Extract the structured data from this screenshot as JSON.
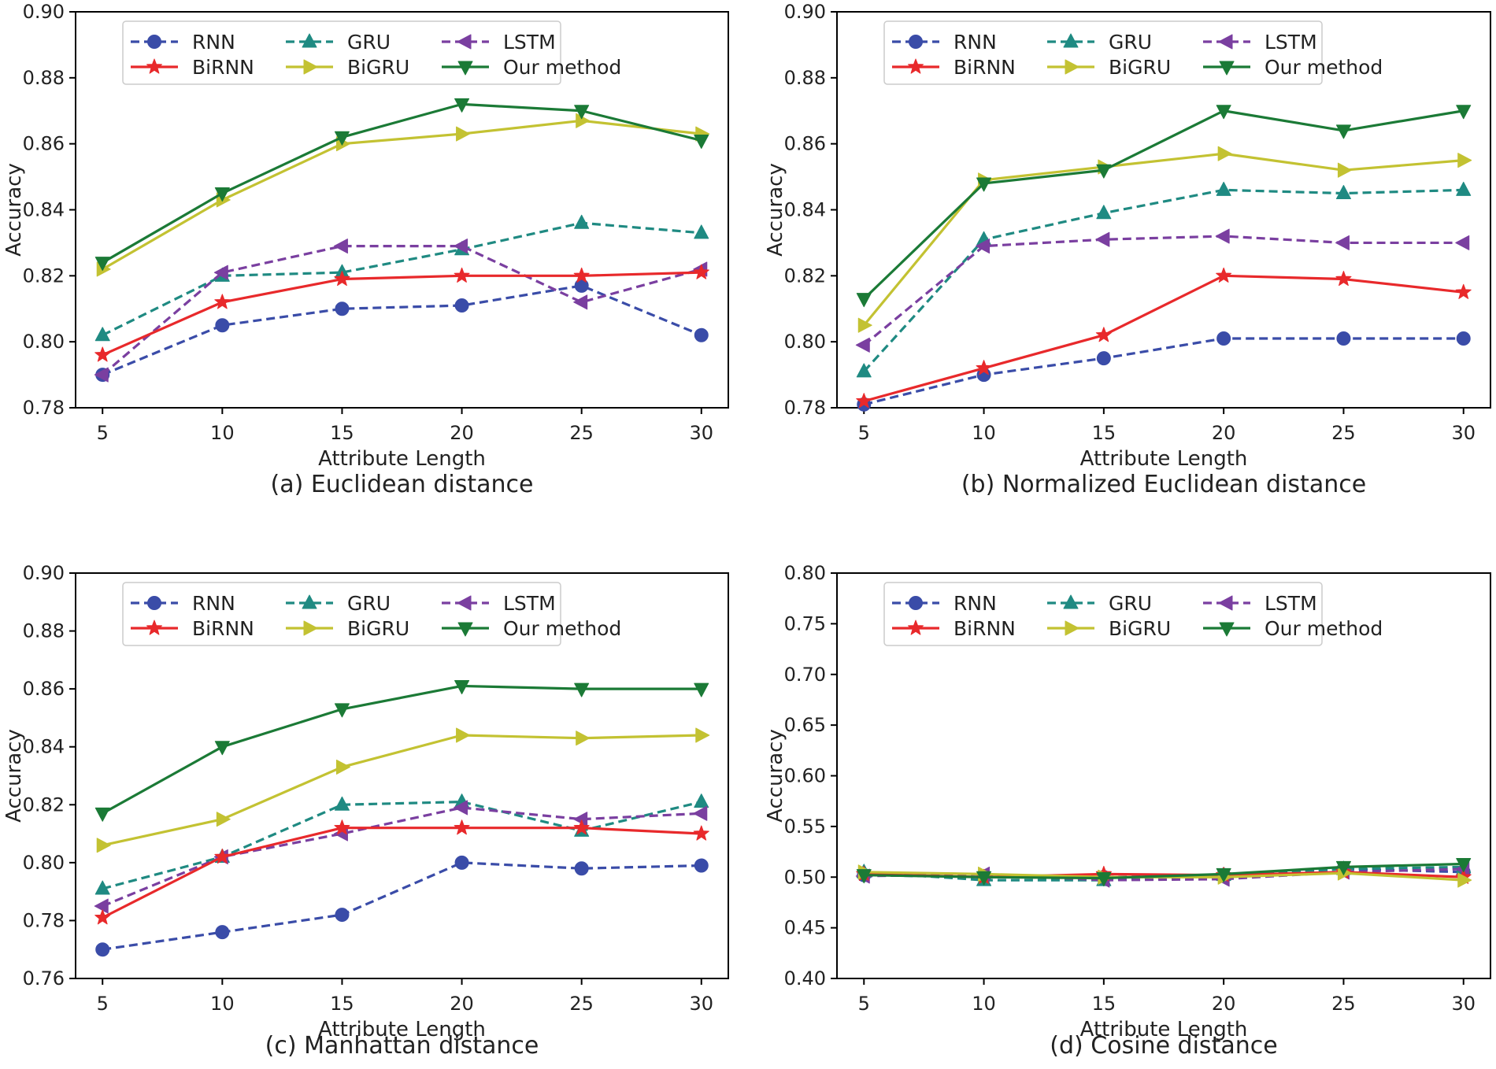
{
  "chart_data": [
    {
      "type": "line",
      "caption": "(a) Euclidean distance",
      "xlabel": "Attribute Length",
      "ylabel": "Accuracy",
      "x": [
        5,
        10,
        15,
        20,
        25,
        30
      ],
      "xticks": [
        "5",
        "10",
        "15",
        "20",
        "25",
        "30"
      ],
      "ylim": [
        0.78,
        0.9
      ],
      "yticks": [
        "0.78",
        "0.80",
        "0.82",
        "0.84",
        "0.86",
        "0.88",
        "0.90"
      ],
      "legend_position": "top-center",
      "series": [
        {
          "name": "RNN",
          "color": "#3a4ca8",
          "dash": "dashed",
          "marker": "circle",
          "values": [
            0.79,
            0.805,
            0.81,
            0.811,
            0.817,
            0.802
          ]
        },
        {
          "name": "GRU",
          "color": "#1f8a82",
          "dash": "dashed",
          "marker": "triangle-up",
          "values": [
            0.802,
            0.82,
            0.821,
            0.828,
            0.836,
            0.833
          ]
        },
        {
          "name": "LSTM",
          "color": "#7a3fa0",
          "dash": "dashed",
          "marker": "triangle-left",
          "values": [
            0.79,
            0.821,
            0.829,
            0.829,
            0.812,
            0.822
          ]
        },
        {
          "name": "BiRNN",
          "color": "#e8292b",
          "dash": "solid",
          "marker": "star",
          "values": [
            0.796,
            0.812,
            0.819,
            0.82,
            0.82,
            0.821
          ]
        },
        {
          "name": "BiGRU",
          "color": "#c3c232",
          "dash": "solid",
          "marker": "triangle-right",
          "values": [
            0.822,
            0.843,
            0.86,
            0.863,
            0.867,
            0.863
          ]
        },
        {
          "name": "Our method",
          "color": "#1b7a36",
          "dash": "solid",
          "marker": "triangle-down",
          "values": [
            0.824,
            0.845,
            0.862,
            0.872,
            0.87,
            0.861
          ]
        }
      ]
    },
    {
      "type": "line",
      "caption": "(b) Normalized Euclidean distance",
      "xlabel": "Attribute Length",
      "ylabel": "Accuracy",
      "x": [
        5,
        10,
        15,
        20,
        25,
        30
      ],
      "xticks": [
        "5",
        "10",
        "15",
        "20",
        "25",
        "30"
      ],
      "ylim": [
        0.78,
        0.9
      ],
      "yticks": [
        "0.78",
        "0.80",
        "0.82",
        "0.84",
        "0.86",
        "0.88",
        "0.90"
      ],
      "legend_position": "top-center",
      "series": [
        {
          "name": "RNN",
          "color": "#3a4ca8",
          "dash": "dashed",
          "marker": "circle",
          "values": [
            0.781,
            0.79,
            0.795,
            0.801,
            0.801,
            0.801
          ]
        },
        {
          "name": "GRU",
          "color": "#1f8a82",
          "dash": "dashed",
          "marker": "triangle-up",
          "values": [
            0.791,
            0.831,
            0.839,
            0.846,
            0.845,
            0.846
          ]
        },
        {
          "name": "LSTM",
          "color": "#7a3fa0",
          "dash": "dashed",
          "marker": "triangle-left",
          "values": [
            0.799,
            0.829,
            0.831,
            0.832,
            0.83,
            0.83
          ]
        },
        {
          "name": "BiRNN",
          "color": "#e8292b",
          "dash": "solid",
          "marker": "star",
          "values": [
            0.782,
            0.792,
            0.802,
            0.82,
            0.819,
            0.815
          ]
        },
        {
          "name": "BiGRU",
          "color": "#c3c232",
          "dash": "solid",
          "marker": "triangle-right",
          "values": [
            0.805,
            0.849,
            0.853,
            0.857,
            0.852,
            0.855
          ]
        },
        {
          "name": "Our method",
          "color": "#1b7a36",
          "dash": "solid",
          "marker": "triangle-down",
          "values": [
            0.813,
            0.848,
            0.852,
            0.87,
            0.864,
            0.87
          ]
        }
      ]
    },
    {
      "type": "line",
      "caption": "(c) Manhattan distance",
      "xlabel": "Attribute Length",
      "ylabel": "Accuracy",
      "x": [
        5,
        10,
        15,
        20,
        25,
        30
      ],
      "xticks": [
        "5",
        "10",
        "15",
        "20",
        "25",
        "30"
      ],
      "ylim": [
        0.76,
        0.9
      ],
      "yticks": [
        "0.76",
        "0.78",
        "0.80",
        "0.82",
        "0.84",
        "0.86",
        "0.88",
        "0.90"
      ],
      "legend_position": "top-center",
      "series": [
        {
          "name": "RNN",
          "color": "#3a4ca8",
          "dash": "dashed",
          "marker": "circle",
          "values": [
            0.77,
            0.776,
            0.782,
            0.8,
            0.798,
            0.799
          ]
        },
        {
          "name": "GRU",
          "color": "#1f8a82",
          "dash": "dashed",
          "marker": "triangle-up",
          "values": [
            0.791,
            0.802,
            0.82,
            0.821,
            0.811,
            0.821
          ]
        },
        {
          "name": "LSTM",
          "color": "#7a3fa0",
          "dash": "dashed",
          "marker": "triangle-left",
          "values": [
            0.785,
            0.802,
            0.81,
            0.819,
            0.815,
            0.817
          ]
        },
        {
          "name": "BiRNN",
          "color": "#e8292b",
          "dash": "solid",
          "marker": "star",
          "values": [
            0.781,
            0.802,
            0.812,
            0.812,
            0.812,
            0.81
          ]
        },
        {
          "name": "BiGRU",
          "color": "#c3c232",
          "dash": "solid",
          "marker": "triangle-right",
          "values": [
            0.806,
            0.815,
            0.833,
            0.844,
            0.843,
            0.844
          ]
        },
        {
          "name": "Our method",
          "color": "#1b7a36",
          "dash": "solid",
          "marker": "triangle-down",
          "values": [
            0.817,
            0.84,
            0.853,
            0.861,
            0.86,
            0.86
          ]
        }
      ]
    },
    {
      "type": "line",
      "caption": "(d) Cosine distance",
      "xlabel": "Attribute Length",
      "ylabel": "Accuracy",
      "x": [
        5,
        10,
        15,
        20,
        25,
        30
      ],
      "xticks": [
        "5",
        "10",
        "15",
        "20",
        "25",
        "30"
      ],
      "ylim": [
        0.4,
        0.8
      ],
      "yticks": [
        "0.40",
        "0.45",
        "0.50",
        "0.55",
        "0.60",
        "0.65",
        "0.70",
        "0.75",
        "0.80"
      ],
      "legend_position": "top-center",
      "series": [
        {
          "name": "RNN",
          "color": "#3a4ca8",
          "dash": "dashed",
          "marker": "circle",
          "values": [
            0.502,
            0.5,
            0.5,
            0.502,
            0.508,
            0.505
          ]
        },
        {
          "name": "GRU",
          "color": "#1f8a82",
          "dash": "dashed",
          "marker": "triangle-up",
          "values": [
            0.505,
            0.497,
            0.497,
            0.502,
            0.508,
            0.51
          ]
        },
        {
          "name": "LSTM",
          "color": "#7a3fa0",
          "dash": "dashed",
          "marker": "triangle-left",
          "values": [
            0.501,
            0.503,
            0.497,
            0.498,
            0.505,
            0.508
          ]
        },
        {
          "name": "BiRNN",
          "color": "#e8292b",
          "dash": "solid",
          "marker": "star",
          "values": [
            0.503,
            0.5,
            0.503,
            0.502,
            0.505,
            0.5
          ]
        },
        {
          "name": "BiGRU",
          "color": "#c3c232",
          "dash": "solid",
          "marker": "triangle-right",
          "values": [
            0.505,
            0.503,
            0.5,
            0.5,
            0.504,
            0.497
          ]
        },
        {
          "name": "Our method",
          "color": "#1b7a36",
          "dash": "solid",
          "marker": "triangle-down",
          "values": [
            0.502,
            0.5,
            0.499,
            0.503,
            0.51,
            0.513
          ]
        }
      ]
    }
  ]
}
